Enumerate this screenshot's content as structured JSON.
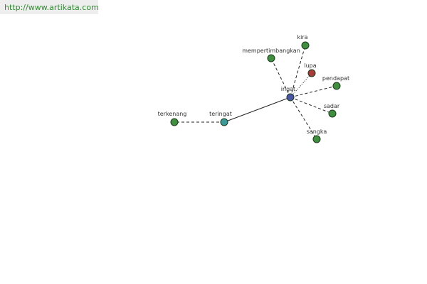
{
  "header": {
    "url": "http://www.artikata.com"
  },
  "nodes": [
    {
      "label": "ingat"
    },
    {
      "label": "kira"
    },
    {
      "label": "mempertimbangkan"
    },
    {
      "label": "lupa"
    },
    {
      "label": "pendapat"
    },
    {
      "label": "sadar"
    },
    {
      "label": "sangka"
    },
    {
      "label": "teringat"
    },
    {
      "label": "terkenang"
    }
  ]
}
